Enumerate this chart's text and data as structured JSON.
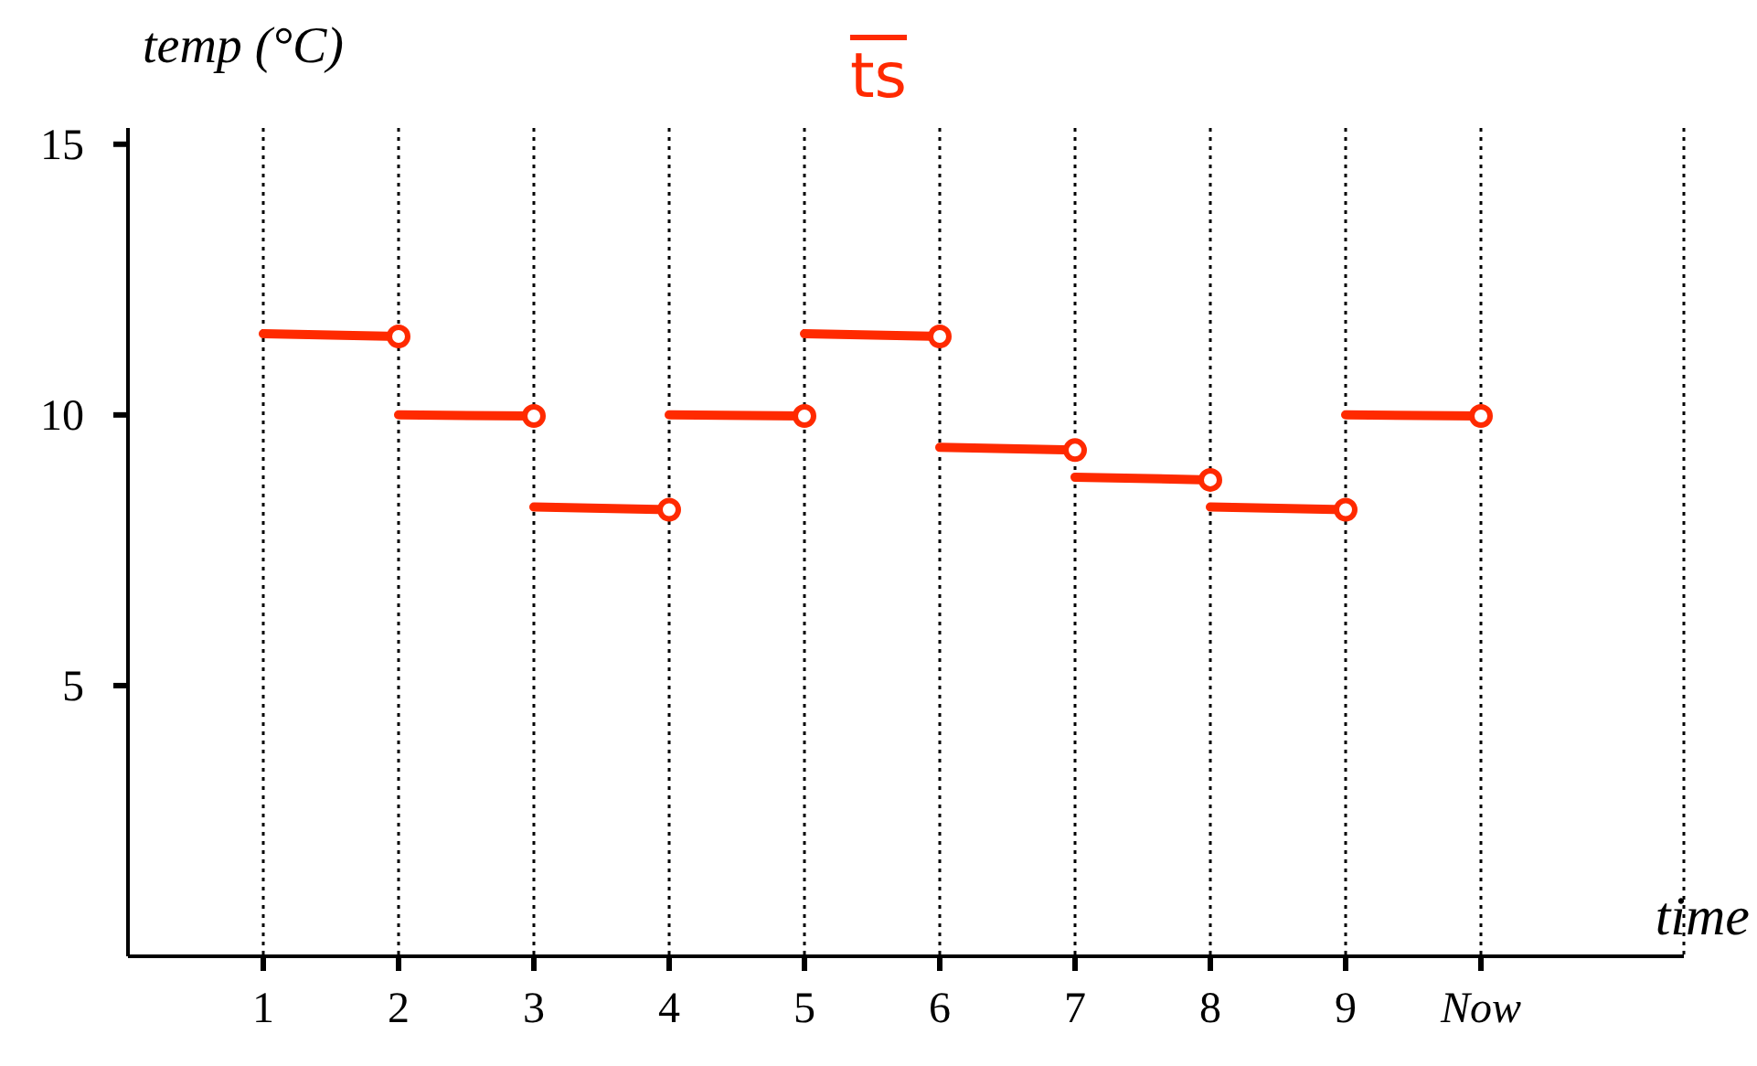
{
  "chart_data": {
    "type": "line",
    "title": "ts",
    "xlabel": "time",
    "ylabel": "temp (°C)",
    "xlim": [
      0,
      11.5
    ],
    "xticks": [
      1,
      2,
      3,
      4,
      5,
      6,
      7,
      8,
      9,
      {
        "value": 10,
        "label": "Now"
      }
    ],
    "ylim": [
      0,
      15.3
    ],
    "yticks": [
      5,
      10,
      15
    ],
    "grid": "x",
    "marker": "circle",
    "line_style": "solid",
    "series": [
      {
        "color": "#ff2a00",
        "x": [
          1,
          2
        ],
        "values": [
          11.5,
          11.45
        ]
      },
      {
        "color": "#ff2a00",
        "x": [
          2,
          3
        ],
        "values": [
          10,
          9.98
        ]
      },
      {
        "color": "#ff2a00",
        "x": [
          3,
          4
        ],
        "values": [
          8.3,
          8.25
        ]
      },
      {
        "color": "#ff2a00",
        "x": [
          4,
          5
        ],
        "values": [
          10,
          9.98
        ]
      },
      {
        "color": "#ff2a00",
        "x": [
          5,
          6
        ],
        "values": [
          11.5,
          11.45
        ]
      },
      {
        "color": "#ff2a00",
        "x": [
          6,
          7
        ],
        "values": [
          9.4,
          9.35
        ]
      },
      {
        "color": "#ff2a00",
        "x": [
          7,
          8
        ],
        "values": [
          8.85,
          8.8
        ]
      },
      {
        "color": "#ff2a00",
        "x": [
          8,
          9
        ],
        "values": [
          8.3,
          8.25
        ]
      },
      {
        "color": "#ff2a00",
        "x": [
          9,
          10
        ],
        "values": [
          10,
          9.98
        ]
      }
    ]
  }
}
